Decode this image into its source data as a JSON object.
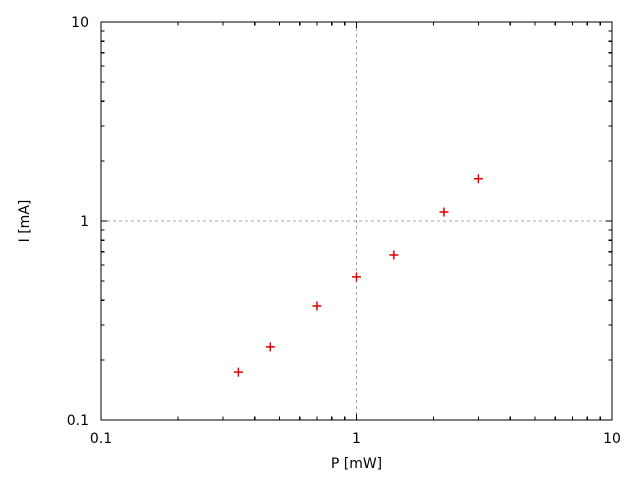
{
  "window": {
    "background": "#ffffff"
  },
  "chart_data": {
    "type": "scatter",
    "xlabel": "P [mW]",
    "ylabel": "I [mA]",
    "x_scale": "log",
    "y_scale": "log",
    "xlim": [
      0.1,
      10
    ],
    "ylim": [
      0.1,
      10
    ],
    "x_ticks": [
      {
        "value": 0.1,
        "label": "0.1"
      },
      {
        "value": 1,
        "label": "1"
      },
      {
        "value": 10,
        "label": "10"
      }
    ],
    "y_ticks": [
      {
        "value": 0.1,
        "label": "0.1"
      },
      {
        "value": 1,
        "label": "1"
      },
      {
        "value": 10,
        "label": "10"
      }
    ],
    "minor_tick_multiples": [
      2,
      3,
      4,
      5,
      6,
      7,
      8,
      9
    ],
    "grid": {
      "show": true,
      "x_values": [
        1
      ],
      "y_values": [
        1
      ],
      "color": "#a0a0a0",
      "style": "dashed"
    },
    "axis_color": "#000000",
    "series": [
      {
        "marker": "plus",
        "color": "#e00000",
        "points": [
          {
            "x": 0.345,
            "y": 0.174
          },
          {
            "x": 0.46,
            "y": 0.233
          },
          {
            "x": 0.7,
            "y": 0.374
          },
          {
            "x": 1.0,
            "y": 0.524
          },
          {
            "x": 1.4,
            "y": 0.675
          },
          {
            "x": 2.2,
            "y": 1.11
          },
          {
            "x": 3.0,
            "y": 1.63
          }
        ]
      }
    ]
  }
}
